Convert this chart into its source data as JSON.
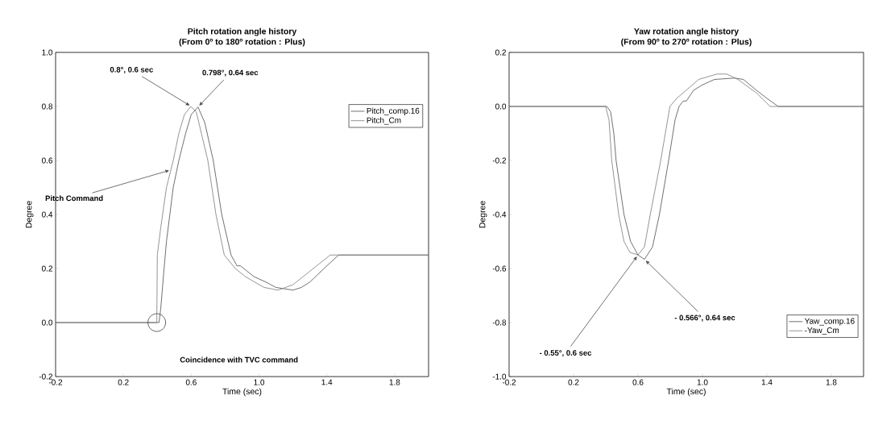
{
  "chart_data": [
    {
      "type": "line",
      "title": "Pitch rotation angle history",
      "subtitle": "(From 0º to 180º rotation : Plus)",
      "xlabel": "Time (sec)",
      "ylabel": "Degree",
      "xlim": [
        -0.2,
        2.0
      ],
      "ylim": [
        -0.2,
        1.0
      ],
      "xticks": [
        -0.2,
        0.2,
        0.6,
        {
          "value": 1.0,
          "label": "1.0"
        },
        1.4,
        1.8
      ],
      "yticks": [
        -0.2,
        {
          "value": 0.0,
          "label": "0.0"
        },
        0.2,
        0.4,
        0.6,
        0.8,
        {
          "value": 1.0,
          "label": "1.0"
        }
      ],
      "legend": "top right",
      "series": [
        {
          "name": "Pitch_comp.16",
          "color": "#4d4d4d",
          "x": [
            -0.2,
            0.41,
            0.42,
            0.44,
            0.454,
            0.494,
            0.527,
            0.567,
            0.6,
            0.64,
            0.68,
            0.73,
            0.78,
            0.835,
            0.87,
            0.89,
            0.91,
            0.97,
            1.04,
            1.1,
            1.2,
            1.25,
            1.3,
            1.4,
            1.47,
            2.0
          ],
          "values": [
            0.0,
            0.0,
            0.05,
            0.2,
            0.3,
            0.5,
            0.6,
            0.7,
            0.77,
            0.798,
            0.74,
            0.6,
            0.4,
            0.25,
            0.21,
            0.21,
            0.2,
            0.17,
            0.15,
            0.13,
            0.12,
            0.13,
            0.15,
            0.21,
            0.25,
            0.25
          ]
        },
        {
          "name": "Pitch_Cm",
          "color": "#7a7a7a",
          "x": [
            -0.2,
            0.397,
            0.4,
            0.42,
            0.454,
            0.494,
            0.527,
            0.56,
            0.597,
            0.63,
            0.698,
            0.746,
            0.795,
            0.86,
            0.92,
            0.974,
            1.03,
            1.112,
            1.2,
            1.3,
            1.42,
            2.0
          ],
          "values": [
            0.0,
            0.0,
            0.25,
            0.35,
            0.5,
            0.6,
            0.7,
            0.77,
            0.8,
            0.78,
            0.6,
            0.4,
            0.25,
            0.2,
            0.17,
            0.15,
            0.13,
            0.12,
            0.14,
            0.19,
            0.25,
            0.25
          ]
        }
      ],
      "annotations": [
        {
          "text": "**0.8°, 0.6 sec**",
          "x": 0.6,
          "y": 0.8
        },
        {
          "text": "**0.798°, 0.64 sec**",
          "x": 0.64,
          "y": 0.798
        },
        {
          "text": "**Pitch Command**",
          "x": 0.48,
          "y": 0.565
        },
        "**Coincidence with TVC command**"
      ]
    },
    {
      "type": "line",
      "title": "Yaw rotation angle history",
      "subtitle": "(From 90º to 270º rotation : Plus)",
      "xlabel": "Time (sec)",
      "ylabel": "Degree",
      "xlim": [
        -0.2,
        2.0
      ],
      "ylim": [
        -1.0,
        0.2
      ],
      "xticks": [
        -0.2,
        0.2,
        0.6,
        {
          "value": 1.0,
          "label": "1.0"
        },
        1.4,
        1.8
      ],
      "yticks": [
        {
          "value": -1.0,
          "label": "-1.0"
        },
        -0.8,
        -0.6,
        -0.4,
        -0.2,
        {
          "value": 0.0,
          "label": "0.0"
        },
        0.2
      ],
      "legend": "bottom right",
      "series": [
        {
          "name": "Yaw_comp.16",
          "color": "#4d4d4d",
          "x": [
            -0.2,
            0.407,
            0.43,
            0.45,
            0.464,
            0.513,
            0.554,
            0.6,
            0.64,
            0.69,
            0.733,
            0.79,
            0.83,
            0.855,
            0.88,
            0.9,
            0.945,
            1.0,
            1.075,
            1.2,
            1.254,
            1.335,
            1.4,
            1.47,
            2.0
          ],
          "values": [
            0.0,
            0.0,
            -0.02,
            -0.1,
            -0.2,
            -0.4,
            -0.5,
            -0.55,
            -0.566,
            -0.52,
            -0.4,
            -0.2,
            -0.05,
            0.0,
            0.02,
            0.02,
            0.06,
            0.08,
            0.1,
            0.105,
            0.1,
            0.06,
            0.03,
            0.0,
            0.0
          ]
        },
        {
          "name": "-Yaw_Cm",
          "color": "#7a7a7a",
          "x": [
            -0.2,
            0.399,
            0.42,
            0.437,
            0.48,
            0.513,
            0.55,
            0.6,
            0.64,
            0.676,
            0.741,
            0.798,
            0.84,
            0.88,
            0.977,
            1.09,
            1.15,
            1.22,
            1.335,
            1.42,
            2.0
          ],
          "values": [
            0.0,
            0.0,
            -0.05,
            -0.2,
            -0.4,
            -0.5,
            -0.54,
            -0.55,
            -0.52,
            -0.4,
            -0.2,
            0.0,
            0.03,
            0.05,
            0.1,
            0.12,
            0.12,
            0.1,
            0.05,
            0.0,
            0.0
          ]
        }
      ],
      "annotations": [
        {
          "text": "**- 0.55°, 0.6 sec**",
          "x": 0.6,
          "y": -0.55
        },
        {
          "text": "**- 0.566°, 0.64 sec**",
          "x": 0.64,
          "y": -0.566
        }
      ]
    }
  ]
}
